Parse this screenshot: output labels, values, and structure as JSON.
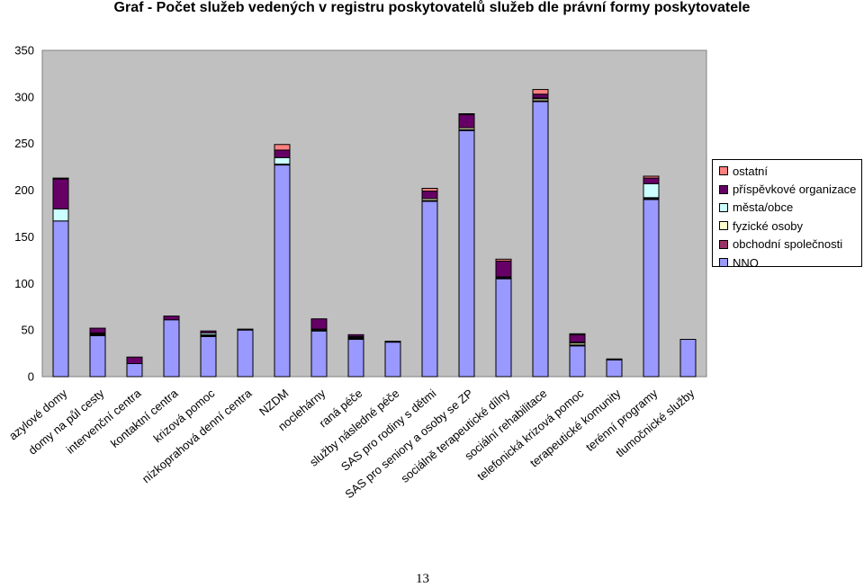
{
  "chart_data": {
    "type": "bar",
    "stacked": true,
    "title": "Graf - Počet služeb vedených v registru poskytovatelů služeb dle právní formy poskytovatele",
    "xlabel": "",
    "ylabel": "",
    "ylim": [
      0,
      350
    ],
    "yticks": [
      0,
      50,
      100,
      150,
      200,
      250,
      300,
      350
    ],
    "grid": false,
    "legend_position": "right",
    "categories": [
      "azylové domy",
      "domy na půl cesty",
      "intervenční centra",
      "kontaktní centra",
      "krizová pomoc",
      "nízkoprahová denní centra",
      "NZDM",
      "noclehárny",
      "raná péče",
      "služby následné péče",
      "SAS pro rodiny s dětmi",
      "SAS pro seniory a osoby se ZP",
      "sociálně terapeutické dílny",
      "sociální rehabilitace",
      "telefonická krizová pomoc",
      "terapeutické komunity",
      "terénní programy",
      "tlumočnické služby"
    ],
    "series": [
      {
        "name": "NNO",
        "color": "#9999ff",
        "values": [
          167,
          44,
          14,
          61,
          43,
          50,
          227,
          49,
          40,
          37,
          188,
          264,
          105,
          295,
          33,
          18,
          190,
          40
        ]
      },
      {
        "name": "obchodní společnosti",
        "color": "#993366",
        "values": [
          0,
          1,
          0,
          0,
          1,
          0,
          0,
          0,
          1,
          0,
          1,
          1,
          1,
          1,
          1,
          0,
          1,
          0
        ]
      },
      {
        "name": "fyzické osoby",
        "color": "#ffffcc",
        "values": [
          0,
          1,
          0,
          0,
          1,
          0,
          1,
          1,
          1,
          0,
          2,
          2,
          1,
          2,
          2,
          0,
          1,
          0
        ]
      },
      {
        "name": "města/obce",
        "color": "#ccffff",
        "values": [
          13,
          1,
          0,
          0,
          2,
          0,
          7,
          1,
          1,
          0,
          0,
          0,
          0,
          1,
          1,
          0,
          15,
          0
        ]
      },
      {
        "name": "příspěvkové organizace",
        "color": "#660066",
        "values": [
          32,
          5,
          7,
          4,
          2,
          0,
          8,
          11,
          2,
          1,
          8,
          14,
          17,
          4,
          8,
          1,
          6,
          0
        ]
      },
      {
        "name": "ostatní",
        "color": "#ff8080",
        "values": [
          1,
          0,
          0,
          0,
          0,
          1,
          6,
          0,
          0,
          0,
          3,
          1,
          2,
          5,
          1,
          0,
          2,
          0
        ]
      }
    ],
    "legend_order": [
      "ostatní",
      "příspěvkové organizace",
      "města/obce",
      "fyzické osoby",
      "obchodní společnosti",
      "NNO"
    ]
  },
  "page": {
    "number": "13"
  },
  "colors": {
    "plot_background": "#c0c0c0"
  }
}
